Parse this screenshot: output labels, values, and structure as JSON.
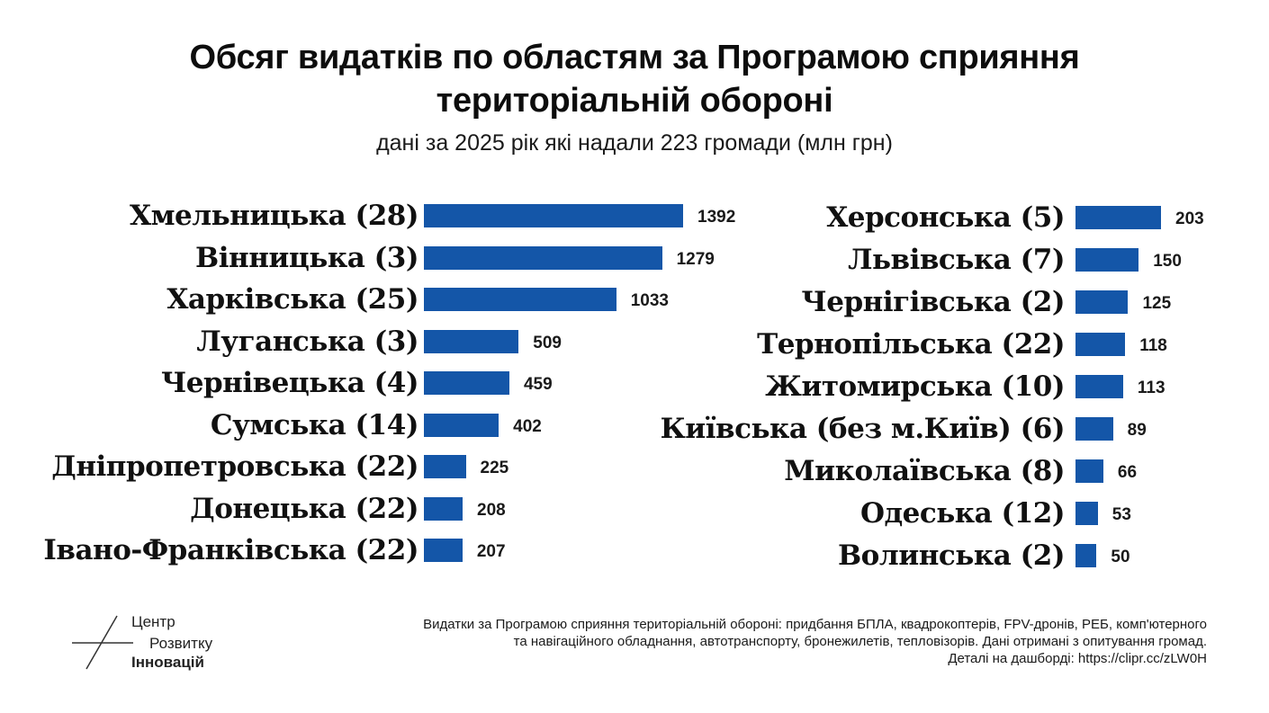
{
  "chart_data": {
    "type": "bar",
    "orientation": "horizontal",
    "title": "Обсяг видатків по областям за Програмою сприяння територіальній обороні",
    "subtitle": "дані за 2025 рік які надали 223 громади (млн грн)",
    "unit": "млн грн",
    "bar_color": "#1456a8",
    "panels": [
      {
        "categories": [
          "Хмельницька (28)",
          "Вінницька (3)",
          "Харківська (25)",
          "Луганська (3)",
          "Чернівецька (4)",
          "Сумська (14)",
          "Дніпропетровська (22)",
          "Донецька (22)",
          "Івано-Франківська (22)"
        ],
        "values": [
          1392,
          1279,
          1033,
          509,
          459,
          402,
          225,
          208,
          207
        ],
        "labels": [
          "1392",
          "1279",
          "1033",
          "509",
          "459",
          "402",
          "225",
          "208",
          "207"
        ]
      },
      {
        "categories": [
          "Херсонська (5)",
          "Львівська (7)",
          "Чернігівська (2)",
          "Тернопільська (22)",
          "Житомирська (10)",
          "Київська (без м.Київ) (6)",
          "Миколаївська (8)",
          "Одеська (12)",
          "Волинська (2)"
        ],
        "values": [
          203,
          150,
          125,
          118,
          113,
          89,
          66,
          53,
          50
        ],
        "labels": [
          "203",
          "150",
          "125",
          "118",
          "113",
          "89",
          "66",
          "53",
          "50"
        ]
      }
    ]
  },
  "title_line1": "Обсяг видатків по областям за Програмою сприяння",
  "title_line2": "територіальній обороні",
  "logo": {
    "line1": "Центр",
    "line2": "Розвитку",
    "line3": "Інновацій"
  },
  "footnote": {
    "line1": "Видатки за Програмою сприяння територіальній обороні: придбання БПЛА, квадрокоптерів, FPV-дронів, РЕБ, комп'ютерного",
    "line2": "та навігаційного обладнання, автотранспорту, бронежилетів, тепловізорів. Дані отримані з опитування громад.",
    "line3": "Деталі на дашборді: https://clipr.cc/zLW0H"
  }
}
